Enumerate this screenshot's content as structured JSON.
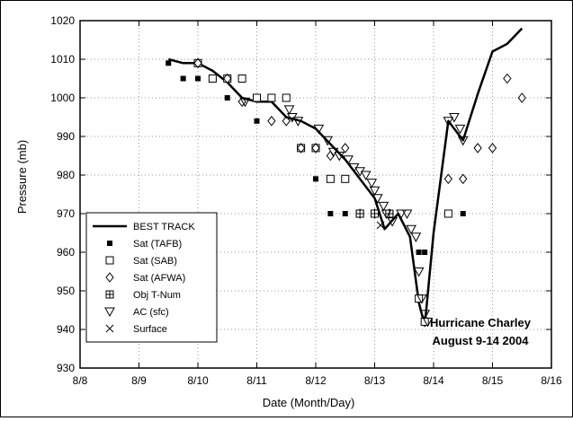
{
  "chart_data": {
    "type": "scatter",
    "xlabel": "Date (Month/Day)",
    "ylabel": "Pressure (mb)",
    "xlim": [
      8,
      16
    ],
    "ylim": [
      930,
      1020
    ],
    "x_ticks": [
      8,
      9,
      10,
      11,
      12,
      13,
      14,
      15,
      16
    ],
    "x_tick_labels": [
      "8/8",
      "8/9",
      "8/10",
      "8/11",
      "8/12",
      "8/13",
      "8/14",
      "8/15",
      "8/16"
    ],
    "y_ticks": [
      930,
      940,
      950,
      960,
      970,
      980,
      990,
      1000,
      1010,
      1020
    ],
    "y_tick_labels": [
      "930",
      "940",
      "950",
      "960",
      "970",
      "980",
      "990",
      "1000",
      "1010",
      "1020"
    ],
    "grid": "dotted",
    "legend_position": "bottom-left",
    "annotation": [
      "Hurricane Charley",
      "August 9-14 2004"
    ],
    "series": [
      {
        "name": "BEST TRACK",
        "marker": "line",
        "points": [
          [
            9.5,
            1010
          ],
          [
            9.75,
            1009
          ],
          [
            10.0,
            1009
          ],
          [
            10.25,
            1007
          ],
          [
            10.5,
            1004
          ],
          [
            10.75,
            1000
          ],
          [
            11.0,
            999
          ],
          [
            11.25,
            999
          ],
          [
            11.5,
            995
          ],
          [
            11.75,
            994
          ],
          [
            12.0,
            992
          ],
          [
            12.25,
            988
          ],
          [
            12.5,
            984
          ],
          [
            12.75,
            979
          ],
          [
            13.0,
            974
          ],
          [
            13.17,
            966
          ],
          [
            13.4,
            970
          ],
          [
            13.6,
            964
          ],
          [
            13.75,
            947
          ],
          [
            13.85,
            941
          ],
          [
            14.0,
            965
          ],
          [
            14.25,
            994
          ],
          [
            14.5,
            989
          ],
          [
            14.75,
            1001
          ],
          [
            15.0,
            1012
          ],
          [
            15.25,
            1014
          ],
          [
            15.5,
            1018
          ]
        ]
      },
      {
        "name": "Sat (TAFB)",
        "marker": "filled-square",
        "points": [
          [
            9.5,
            1009
          ],
          [
            9.75,
            1005
          ],
          [
            10.0,
            1005
          ],
          [
            10.5,
            1000
          ],
          [
            11.0,
            994
          ],
          [
            12.0,
            979
          ],
          [
            12.25,
            970
          ],
          [
            12.5,
            970
          ],
          [
            12.75,
            970
          ],
          [
            13.0,
            970
          ],
          [
            13.25,
            970
          ],
          [
            13.75,
            960
          ],
          [
            13.85,
            960
          ],
          [
            14.25,
            970
          ],
          [
            14.5,
            970
          ]
        ]
      },
      {
        "name": "Sat (SAB)",
        "marker": "open-square",
        "points": [
          [
            10.0,
            1009
          ],
          [
            10.25,
            1005
          ],
          [
            10.5,
            1005
          ],
          [
            10.75,
            1005
          ],
          [
            11.0,
            1000
          ],
          [
            11.25,
            1000
          ],
          [
            11.5,
            1000
          ],
          [
            11.75,
            987
          ],
          [
            12.0,
            987
          ],
          [
            12.25,
            979
          ],
          [
            12.5,
            979
          ],
          [
            12.75,
            970
          ],
          [
            13.0,
            970
          ],
          [
            13.25,
            970
          ],
          [
            13.75,
            948
          ],
          [
            13.85,
            942
          ],
          [
            14.25,
            970
          ]
        ]
      },
      {
        "name": "Sat (AFWA)",
        "marker": "diamond",
        "points": [
          [
            10.0,
            1009
          ],
          [
            10.5,
            1005
          ],
          [
            10.75,
            999
          ],
          [
            11.25,
            994
          ],
          [
            11.5,
            994
          ],
          [
            11.75,
            987
          ],
          [
            12.0,
            987
          ],
          [
            12.25,
            985
          ],
          [
            12.5,
            987
          ],
          [
            12.75,
            970
          ],
          [
            13.0,
            970
          ],
          [
            13.25,
            970
          ],
          [
            14.25,
            979
          ],
          [
            14.5,
            979
          ],
          [
            14.75,
            987
          ],
          [
            15.0,
            987
          ],
          [
            15.25,
            1005
          ],
          [
            15.5,
            1000
          ]
        ]
      },
      {
        "name": "Obj T-Num",
        "marker": "boxed-cross",
        "points": [
          [
            12.75,
            970
          ],
          [
            13.0,
            970
          ],
          [
            13.25,
            970
          ]
        ]
      },
      {
        "name": "AC (sfc)",
        "marker": "triangle-down",
        "points": [
          [
            10.8,
            999
          ],
          [
            11.55,
            997
          ],
          [
            11.6,
            995
          ],
          [
            11.7,
            994
          ],
          [
            12.05,
            992
          ],
          [
            12.2,
            989
          ],
          [
            12.3,
            986
          ],
          [
            12.4,
            985
          ],
          [
            12.55,
            984
          ],
          [
            12.65,
            982
          ],
          [
            12.75,
            981
          ],
          [
            12.85,
            980
          ],
          [
            12.95,
            978
          ],
          [
            13.0,
            976
          ],
          [
            13.05,
            974
          ],
          [
            13.15,
            972
          ],
          [
            13.2,
            970
          ],
          [
            13.3,
            968
          ],
          [
            13.45,
            970
          ],
          [
            13.55,
            970
          ],
          [
            13.62,
            966
          ],
          [
            13.7,
            964
          ],
          [
            13.75,
            955
          ],
          [
            13.8,
            948
          ],
          [
            13.85,
            944
          ],
          [
            13.9,
            942
          ],
          [
            14.25,
            994
          ],
          [
            14.35,
            995
          ],
          [
            14.45,
            992
          ],
          [
            14.5,
            989
          ]
        ]
      },
      {
        "name": "Surface",
        "marker": "cross",
        "points": [
          [
            13.1,
            967
          ]
        ]
      }
    ]
  }
}
